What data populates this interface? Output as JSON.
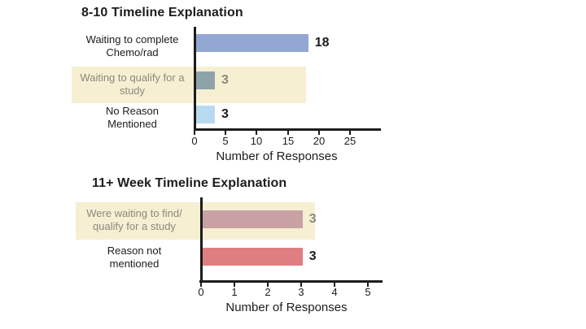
{
  "colors": {
    "text": "#1c1c1c",
    "muted_text": "#8b897f",
    "axis": "#1c1c1c",
    "highlight_band": "#f6efd2"
  },
  "chart_data": [
    {
      "type": "bar",
      "orientation": "horizontal",
      "title": "8-10 Timeline Explanation",
      "xlabel": "Number of Responses",
      "xlim": [
        0,
        29.8
      ],
      "x_ticks": [
        "0",
        "5",
        "10",
        "15",
        "20",
        "25"
      ],
      "grid": false,
      "legend": false,
      "rows": [
        {
          "label": "Waiting to complete\nChemo/rad",
          "value": 18,
          "color": "#93a7d3",
          "highlighted": false
        },
        {
          "label": "Waiting to qualify for a\nstudy",
          "value": 3,
          "color": "#8ea3a9",
          "highlighted": true
        },
        {
          "label": "No Reason\nMentioned",
          "value": 3,
          "color": "#b7daf1",
          "highlighted": false
        }
      ]
    },
    {
      "type": "bar",
      "orientation": "horizontal",
      "title": "11+ Week Timeline Explanation",
      "xlabel": "Number of Responses",
      "xlim": [
        0,
        5.45
      ],
      "x_ticks": [
        "0",
        "1",
        "2",
        "3",
        "4",
        "5"
      ],
      "grid": false,
      "legend": false,
      "rows": [
        {
          "label": "Were waiting to find/\nqualify for a study",
          "value": 3,
          "color": "#c8a1a4",
          "highlighted": true
        },
        {
          "label": "Reason not\nmentioned",
          "value": 3,
          "color": "#df7e81",
          "highlighted": false
        }
      ]
    }
  ]
}
